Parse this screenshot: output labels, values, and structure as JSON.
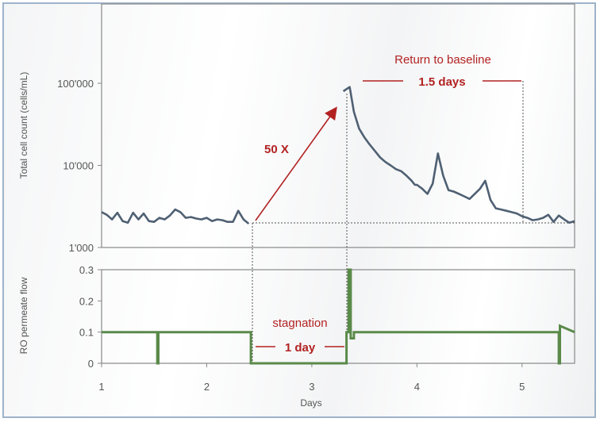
{
  "chart_data": [
    {
      "type": "line",
      "ylabel": "Total  cell count (cells/mL)",
      "yscale": "log",
      "ylim": [
        1000,
        1000000
      ],
      "yticks": [
        "1'000",
        "10'000",
        "100'000"
      ],
      "xlim": [
        1,
        5.5
      ],
      "color": "#4f6073",
      "series": [
        {
          "x": [
            1.0,
            1.05,
            1.1,
            1.15,
            1.2,
            1.25,
            1.3,
            1.35,
            1.4,
            1.45,
            1.5,
            1.55,
            1.6,
            1.65,
            1.7,
            1.75,
            1.8,
            1.85,
            1.9,
            1.95,
            2.0,
            2.05,
            2.1,
            2.15,
            2.2,
            2.25,
            2.3,
            2.35,
            2.4,
            3.3,
            3.36,
            3.4,
            3.45,
            3.5,
            3.55,
            3.6,
            3.65,
            3.7,
            3.75,
            3.8,
            3.85,
            3.9,
            3.95,
            3.98,
            4.0,
            4.05,
            4.1,
            4.15,
            4.2,
            4.25,
            4.3,
            4.35,
            4.4,
            4.45,
            4.5,
            4.55,
            4.6,
            4.65,
            4.7,
            4.75,
            4.8,
            4.85,
            4.9,
            4.95,
            5.0,
            5.05,
            5.1,
            5.15,
            5.2,
            5.25,
            5.3,
            5.35,
            5.4,
            5.45,
            5.5
          ],
          "y": [
            2700,
            2500,
            2200,
            2650,
            2100,
            2000,
            2650,
            2200,
            2600,
            2100,
            2050,
            2300,
            2200,
            2450,
            2900,
            2700,
            2300,
            2350,
            2250,
            2200,
            2300,
            2100,
            2200,
            2150,
            2050,
            2050,
            2800,
            2200,
            1950,
            80000,
            90000,
            45000,
            28000,
            22000,
            18000,
            15000,
            12500,
            11000,
            10000,
            9000,
            8500,
            7500,
            6500,
            5800,
            5800,
            5200,
            4500,
            6000,
            14000,
            7500,
            5000,
            4800,
            4500,
            4200,
            3900,
            4500,
            5200,
            6500,
            3800,
            3000,
            2900,
            2800,
            2700,
            2600,
            2400,
            2300,
            2150,
            2200,
            2300,
            2500,
            2050,
            2450,
            2200,
            2000,
            2100
          ]
        }
      ],
      "annotations": {
        "jump": "50 X",
        "return_title": "Return to baseline",
        "return_value": "1.5 days"
      }
    },
    {
      "type": "line",
      "ylabel": "RO permeate flow",
      "ylim": [
        0,
        0.3
      ],
      "yticks": [
        "0",
        "0.1",
        "0.2",
        "0.3"
      ],
      "xlabel": "Days",
      "xlim": [
        1,
        5.5
      ],
      "xticks": [
        "1",
        "2",
        "3",
        "4",
        "5"
      ],
      "color": "#5a8a4a",
      "series": [
        {
          "x": [
            1.0,
            1.53,
            1.53,
            1.54,
            1.54,
            2.42,
            2.42,
            3.33,
            3.33,
            3.35,
            3.35,
            3.37,
            3.37,
            3.4,
            3.4,
            5.35,
            5.35,
            5.36,
            5.36,
            5.5
          ],
          "y": [
            0.1,
            0.1,
            0.0,
            0.0,
            0.1,
            0.1,
            0.0,
            0.0,
            0.1,
            0.1,
            0.3,
            0.3,
            0.08,
            0.08,
            0.1,
            0.1,
            0.0,
            0.0,
            0.12,
            0.1
          ]
        }
      ],
      "annotations": {
        "stagnation_title": "stagnation",
        "stagnation_value": "1 day"
      }
    }
  ]
}
